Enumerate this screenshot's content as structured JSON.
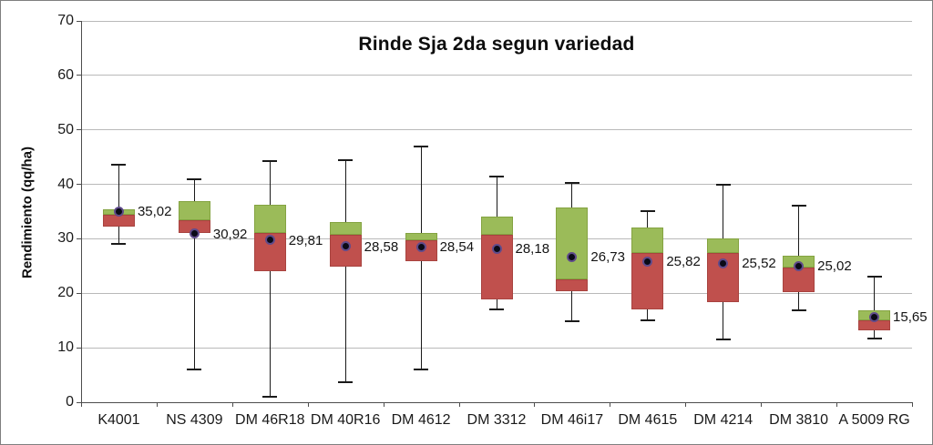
{
  "chart_data": {
    "type": "boxplot",
    "title": "Rinde Sja 2da segun variedad",
    "xlabel": "",
    "ylabel": "Rendimiento (qq/ha)",
    "ylim": [
      0,
      70
    ],
    "yticks": [
      0,
      10,
      20,
      30,
      40,
      50,
      60,
      70
    ],
    "grid": true,
    "legend": "none",
    "categories": [
      "K4001",
      "NS 4309",
      "DM 46R18",
      "DM 40R16",
      "DM 4612",
      "DM 3312",
      "DM 46i17",
      "DM 4615",
      "DM 4214",
      "DM 3810",
      "A 5009 RG"
    ],
    "series": [
      {
        "name": "K4001",
        "min": 29.1,
        "q1": 32.3,
        "median": 34.4,
        "q3": 35.4,
        "max": 43.6,
        "mean": 35.02,
        "mean_label": "35,02"
      },
      {
        "name": "NS 4309",
        "min": 6.0,
        "q1": 31.1,
        "median": 33.4,
        "q3": 37.0,
        "max": 41.0,
        "mean": 30.92,
        "mean_label": "30,92"
      },
      {
        "name": "DM 46R18",
        "min": 1.0,
        "q1": 24.1,
        "median": 31.1,
        "q3": 36.2,
        "max": 44.3,
        "mean": 29.81,
        "mean_label": "29,81"
      },
      {
        "name": "DM 40R16",
        "min": 3.7,
        "q1": 24.9,
        "median": 30.7,
        "q3": 33.0,
        "max": 44.4,
        "mean": 28.58,
        "mean_label": "28,58"
      },
      {
        "name": "DM 4612",
        "min": 6.0,
        "q1": 25.9,
        "median": 29.8,
        "q3": 31.0,
        "max": 47.0,
        "mean": 28.54,
        "mean_label": "28,54"
      },
      {
        "name": "DM 3312",
        "min": 17.1,
        "q1": 18.9,
        "median": 30.7,
        "q3": 34.0,
        "max": 41.5,
        "mean": 28.18,
        "mean_label": "28,18"
      },
      {
        "name": "DM 46i17",
        "min": 14.9,
        "q1": 20.3,
        "median": 22.6,
        "q3": 35.8,
        "max": 40.2,
        "mean": 26.73,
        "mean_label": "26,73"
      },
      {
        "name": "DM 4615",
        "min": 15.1,
        "q1": 17.0,
        "median": 27.4,
        "q3": 32.0,
        "max": 35.1,
        "mean": 25.82,
        "mean_label": "25,82"
      },
      {
        "name": "DM 4214",
        "min": 11.5,
        "q1": 18.3,
        "median": 27.4,
        "q3": 30.0,
        "max": 40.0,
        "mean": 25.52,
        "mean_label": "25,52"
      },
      {
        "name": "DM 3810",
        "min": 16.8,
        "q1": 20.2,
        "median": 24.8,
        "q3": 26.9,
        "max": 36.1,
        "mean": 25.02,
        "mean_label": "25,02"
      },
      {
        "name": "A 5009 RG",
        "min": 11.7,
        "q1": 13.2,
        "median": 15.1,
        "q3": 16.9,
        "max": 23.0,
        "mean": 15.65,
        "mean_label": "15,65"
      }
    ],
    "colors": {
      "lower_box": "#c0504d",
      "upper_box": "#9bbb59",
      "whisker": "#1a1a1a",
      "mean_marker_fill": "#0a0a16",
      "mean_marker_ring": "#5f4b8b",
      "gridline": "#b9b9b9",
      "axis": "#4d4d4d",
      "text": "#1a1a1a"
    }
  }
}
